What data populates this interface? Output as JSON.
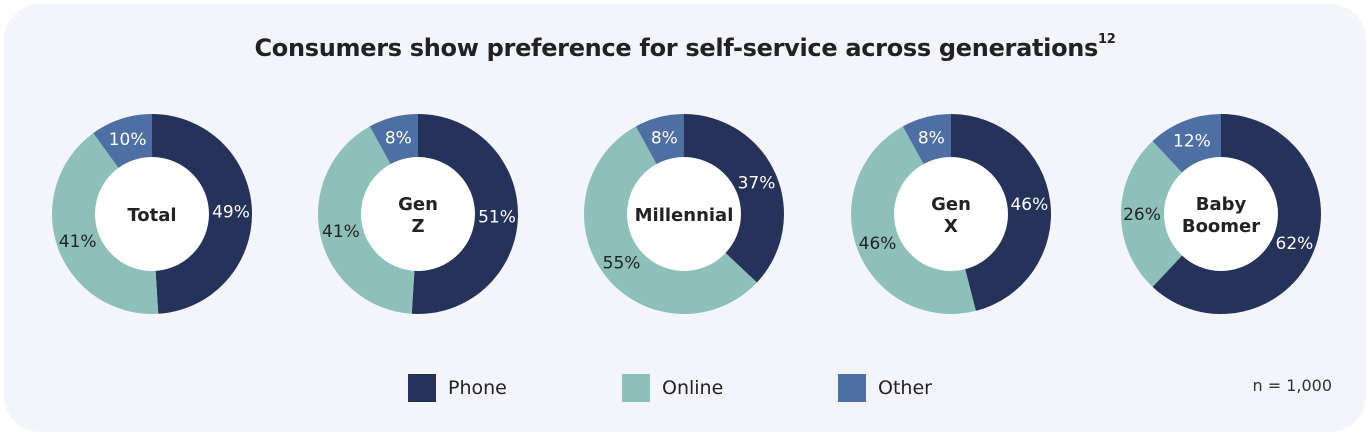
{
  "title": "Consumers show preference for self-service across generations",
  "title_superscript": "12",
  "note": "n = 1,000",
  "colors": {
    "Phone": "#253259",
    "Online": "#8dc0b8",
    "Other": "#4d6fa3"
  },
  "legend": [
    {
      "label": "Phone",
      "color": "#253259"
    },
    {
      "label": "Online",
      "color": "#8dc0b8"
    },
    {
      "label": "Other",
      "color": "#4d6fa3"
    }
  ],
  "chart_data": [
    {
      "type": "pie",
      "donut": true,
      "center_label": "Total",
      "categories": [
        "Phone",
        "Online",
        "Other"
      ],
      "values": [
        49,
        41,
        10
      ],
      "labels": [
        "49%",
        "41%",
        "10%"
      ]
    },
    {
      "type": "pie",
      "donut": true,
      "center_label": "Gen Z",
      "categories": [
        "Phone",
        "Online",
        "Other"
      ],
      "values": [
        51,
        41,
        8
      ],
      "labels": [
        "51%",
        "41%",
        "8%"
      ]
    },
    {
      "type": "pie",
      "donut": true,
      "center_label": "Millennial",
      "categories": [
        "Phone",
        "Online",
        "Other"
      ],
      "values": [
        37,
        55,
        8
      ],
      "labels": [
        "37%",
        "55%",
        "8%"
      ]
    },
    {
      "type": "pie",
      "donut": true,
      "center_label": "Gen X",
      "categories": [
        "Phone",
        "Online",
        "Other"
      ],
      "values": [
        46,
        46,
        8
      ],
      "labels": [
        "46%",
        "46%",
        "8%"
      ]
    },
    {
      "type": "pie",
      "donut": true,
      "center_label": "Baby Boomer",
      "categories": [
        "Phone",
        "Online",
        "Other"
      ],
      "values": [
        62,
        26,
        12
      ],
      "labels": [
        "62%",
        "26%",
        "12%"
      ]
    }
  ]
}
